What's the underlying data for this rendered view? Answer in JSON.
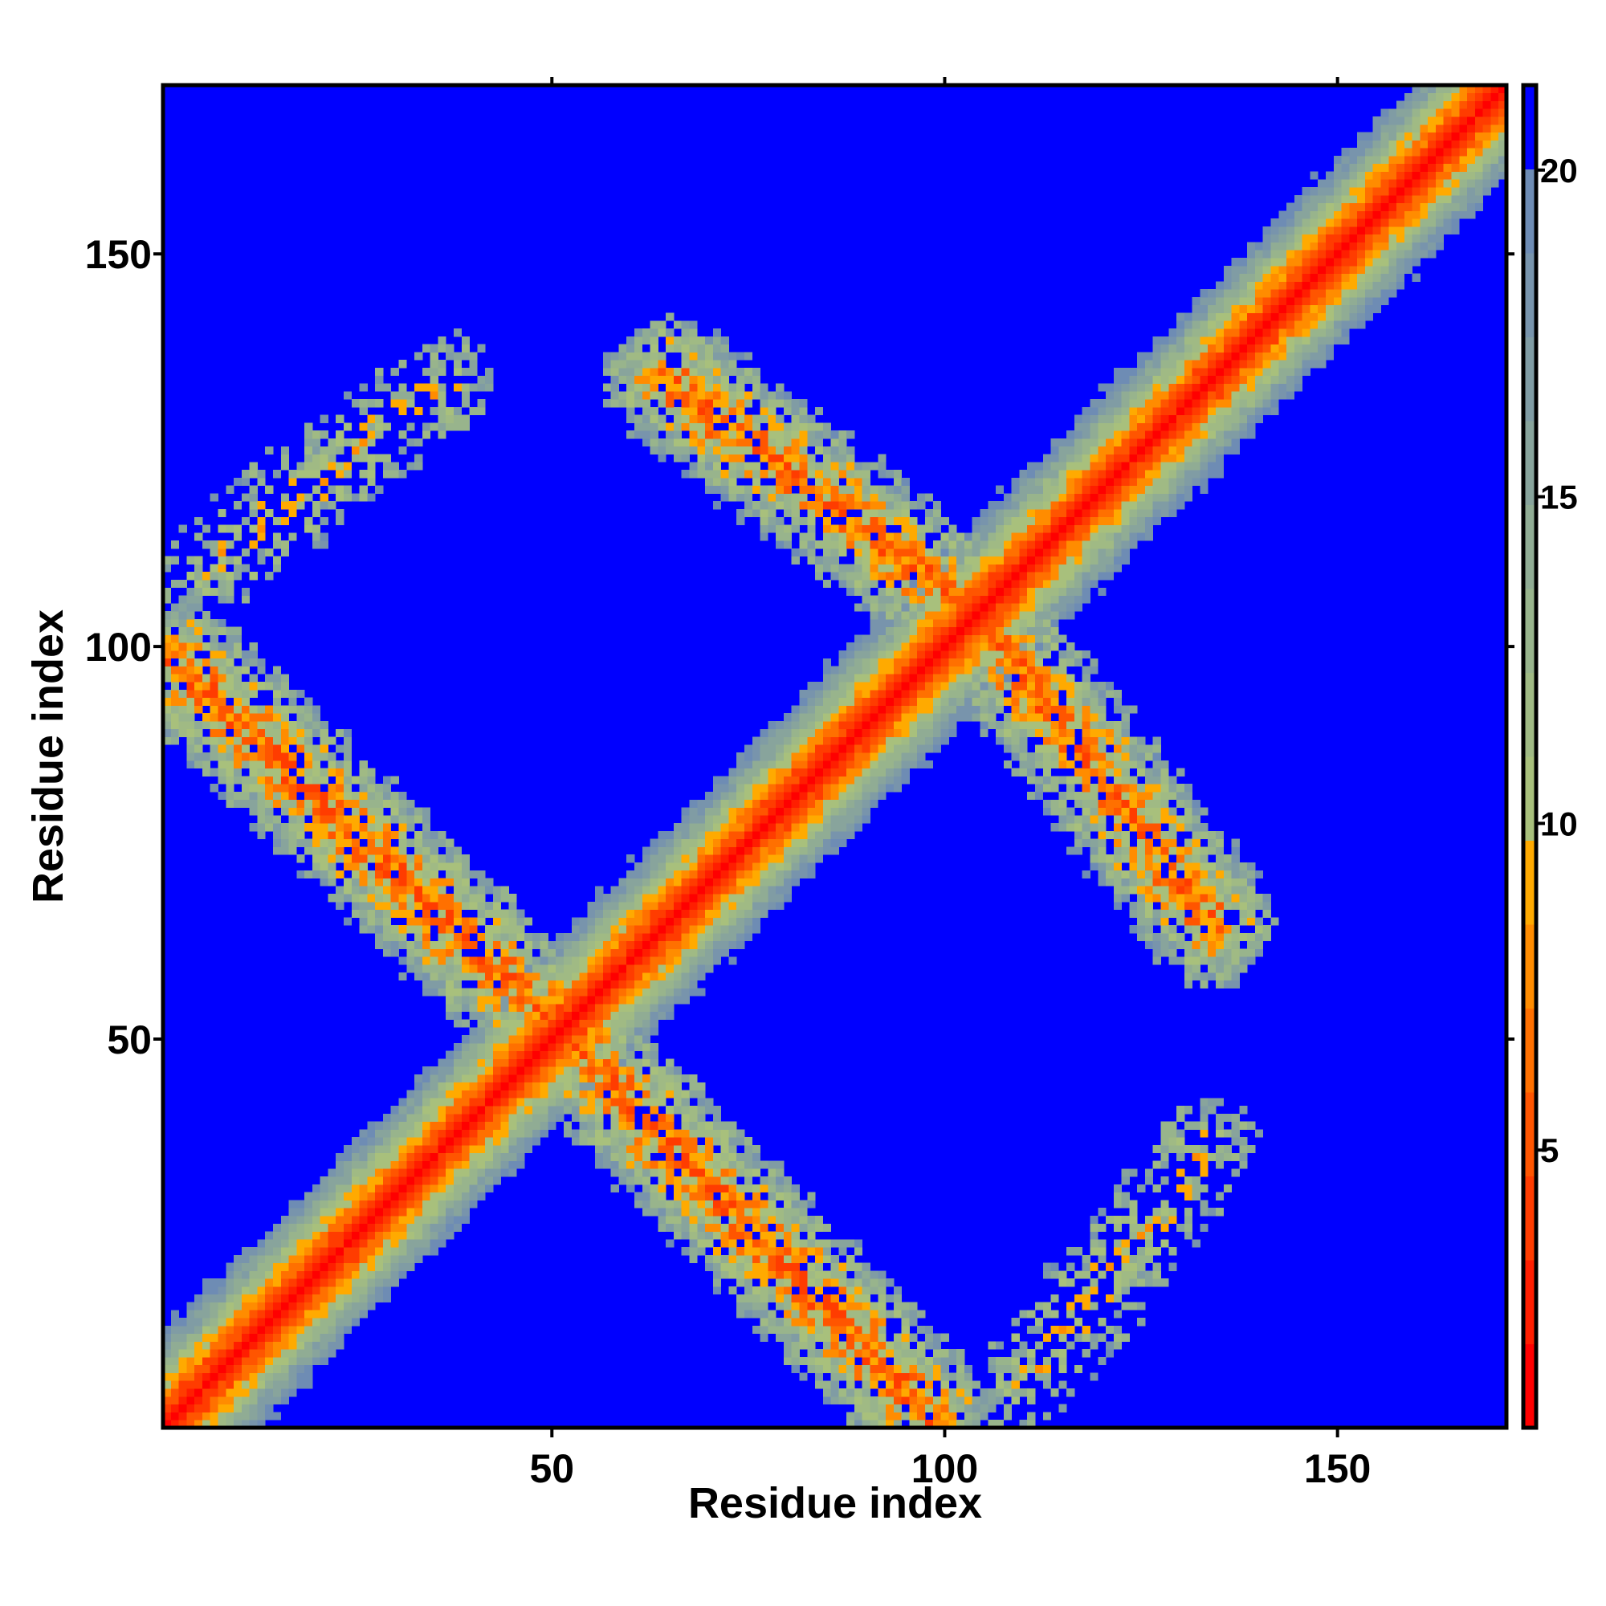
{
  "chart_data": {
    "type": "heatmap",
    "title": "",
    "xlabel": "Residue index",
    "ylabel": "Residue index",
    "n_residues": 171,
    "xlim": [
      0.5,
      171.5
    ],
    "ylim": [
      0.5,
      171.5
    ],
    "xticks": [
      50,
      100,
      150
    ],
    "yticks": [
      50,
      100,
      150
    ],
    "xtick_labels": [
      "50",
      "100",
      "150"
    ],
    "ytick_labels": [
      "50",
      "100",
      "150"
    ],
    "colorbar": {
      "range": [
        0.75,
        21.3
      ],
      "ticks": [
        5,
        10,
        15,
        20
      ],
      "tick_labels": [
        "5",
        "10",
        "15",
        "20"
      ],
      "levels": [
        "#ff0000",
        "#ff1e00",
        "#ff3c00",
        "#ff5500",
        "#ff7000",
        "#ff8c00",
        "#ffaa00",
        "#a8c07c",
        "#a0ba84",
        "#98b48c",
        "#90ac94",
        "#88a49c",
        "#809ca4",
        "#7894ac",
        "#6e8cb4",
        "#0000ff"
      ]
    },
    "matrix_symmetric": true,
    "features": [
      {
        "kind": "main-diagonal",
        "core_value": 1.2,
        "slope_per_residue": 1.55
      },
      {
        "kind": "antiparallel-contact",
        "from": [
          1.8,
          98.5
        ],
        "to": [
          51,
          51
        ],
        "half_width": 7,
        "base_value": 6
      },
      {
        "kind": "antiparallel-contact",
        "from": [
          64.8,
          133.9
        ],
        "to": [
          104,
          104
        ],
        "half_width": 7,
        "base_value": 6
      },
      {
        "kind": "parallel-contact",
        "from": [
          3.7,
          108
        ],
        "to": [
          36.6,
          134
        ],
        "half_width": 5,
        "base_value": 11
      }
    ]
  }
}
